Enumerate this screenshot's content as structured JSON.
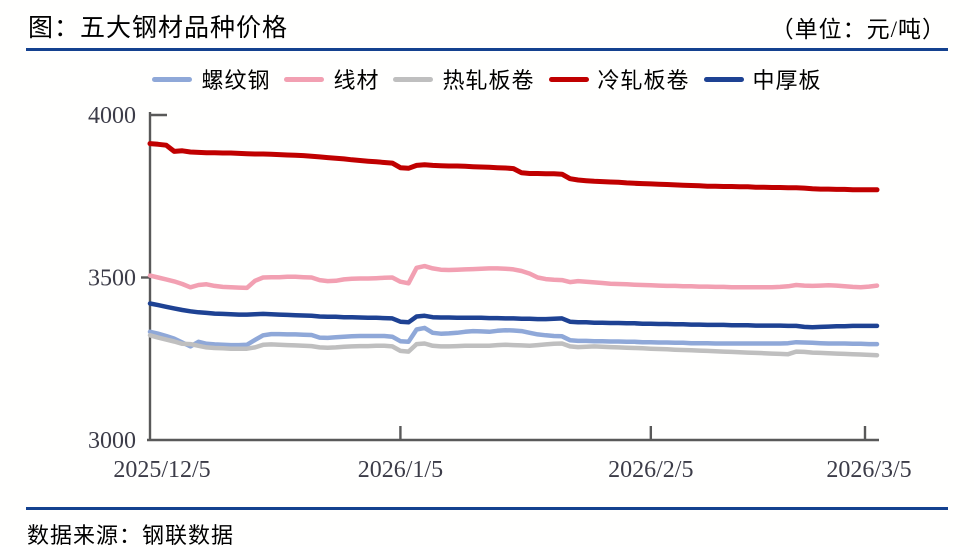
{
  "header": {
    "title": "图：五大钢材品种价格",
    "unit_note": "（单位：元/吨）"
  },
  "footer": {
    "source": "数据来源：钢联数据"
  },
  "colors": {
    "accent_rule": "#14418F",
    "axis_line": "#595959",
    "tick_label": "#3C3C48"
  },
  "chart_data": {
    "type": "line",
    "title": "五大钢材品种价格",
    "unit": "元/吨",
    "grid": false,
    "legend_position": "top",
    "ylim": [
      3000,
      4000
    ],
    "y_ticks": [
      4000,
      3500,
      3000
    ],
    "x_tick_labels": [
      "2025/12/5",
      "2026/1/5",
      "2026/2/5",
      "2026/3/5"
    ],
    "x_tick_days": [
      0,
      31,
      62,
      90
    ],
    "x_range_days": 90,
    "series": [
      {
        "name": "螺纹钢",
        "key": "rebar",
        "color": "#8FA8D8",
        "values": [
          3333,
          3327,
          3320,
          3312,
          3300,
          3288,
          3302,
          3296,
          3294,
          3293,
          3292,
          3292,
          3293,
          3308,
          3322,
          3326,
          3326,
          3325,
          3325,
          3324,
          3323,
          3315,
          3314,
          3316,
          3318,
          3319,
          3320,
          3320,
          3320,
          3320,
          3318,
          3304,
          3302,
          3340,
          3345,
          3330,
          3327,
          3328,
          3330,
          3333,
          3335,
          3334,
          3333,
          3336,
          3338,
          3337,
          3335,
          3330,
          3325,
          3322,
          3320,
          3319,
          3307,
          3305,
          3305,
          3304,
          3304,
          3303,
          3303,
          3302,
          3302,
          3301,
          3301,
          3300,
          3300,
          3299,
          3299,
          3298,
          3298,
          3298,
          3297,
          3297,
          3297,
          3297,
          3297,
          3297,
          3297,
          3297,
          3297,
          3298,
          3301,
          3300,
          3299,
          3298,
          3297,
          3297,
          3297,
          3296,
          3296,
          3295,
          3295
        ]
      },
      {
        "name": "线材",
        "key": "wire-rod",
        "color": "#F2A0B2",
        "values": [
          3506,
          3500,
          3494,
          3488,
          3480,
          3470,
          3477,
          3479,
          3474,
          3471,
          3470,
          3469,
          3468,
          3490,
          3500,
          3501,
          3501,
          3502,
          3502,
          3501,
          3500,
          3492,
          3489,
          3490,
          3494,
          3496,
          3497,
          3497,
          3498,
          3499,
          3500,
          3487,
          3482,
          3530,
          3535,
          3528,
          3524,
          3523,
          3524,
          3525,
          3526,
          3527,
          3528,
          3528,
          3527,
          3525,
          3520,
          3512,
          3500,
          3495,
          3493,
          3492,
          3486,
          3489,
          3487,
          3485,
          3483,
          3481,
          3480,
          3479,
          3478,
          3477,
          3476,
          3475,
          3474,
          3474,
          3473,
          3473,
          3472,
          3472,
          3471,
          3471,
          3470,
          3470,
          3470,
          3470,
          3470,
          3470,
          3471,
          3473,
          3477,
          3475,
          3474,
          3475,
          3476,
          3475,
          3473,
          3471,
          3470,
          3472,
          3475
        ]
      },
      {
        "name": "热轧板卷",
        "key": "hot-rolled-coil",
        "color": "#BFBFBF",
        "values": [
          3322,
          3315,
          3309,
          3303,
          3296,
          3295,
          3290,
          3285,
          3283,
          3282,
          3281,
          3281,
          3281,
          3285,
          3293,
          3294,
          3293,
          3292,
          3291,
          3290,
          3289,
          3285,
          3284,
          3285,
          3287,
          3288,
          3289,
          3289,
          3290,
          3290,
          3288,
          3274,
          3272,
          3295,
          3297,
          3290,
          3288,
          3288,
          3289,
          3290,
          3290,
          3290,
          3290,
          3292,
          3293,
          3292,
          3291,
          3290,
          3292,
          3294,
          3296,
          3297,
          3288,
          3286,
          3287,
          3288,
          3287,
          3286,
          3285,
          3284,
          3283,
          3282,
          3281,
          3280,
          3279,
          3278,
          3277,
          3276,
          3275,
          3274,
          3273,
          3272,
          3271,
          3270,
          3269,
          3268,
          3267,
          3266,
          3265,
          3264,
          3272,
          3271,
          3269,
          3268,
          3267,
          3266,
          3265,
          3264,
          3263,
          3262,
          3261
        ]
      },
      {
        "name": "冷轧板卷",
        "key": "cold-rolled-coil",
        "color": "#C00000",
        "values": [
          3912,
          3910,
          3907,
          3888,
          3890,
          3886,
          3885,
          3884,
          3884,
          3883,
          3883,
          3882,
          3881,
          3880,
          3880,
          3879,
          3878,
          3877,
          3876,
          3875,
          3873,
          3871,
          3869,
          3867,
          3865,
          3862,
          3860,
          3858,
          3856,
          3854,
          3852,
          3838,
          3836,
          3845,
          3847,
          3845,
          3844,
          3843,
          3843,
          3842,
          3841,
          3840,
          3839,
          3838,
          3837,
          3835,
          3822,
          3820,
          3820,
          3819,
          3819,
          3818,
          3804,
          3800,
          3798,
          3796,
          3795,
          3794,
          3793,
          3791,
          3790,
          3789,
          3788,
          3787,
          3786,
          3785,
          3784,
          3783,
          3782,
          3781,
          3781,
          3780,
          3780,
          3779,
          3779,
          3778,
          3778,
          3777,
          3777,
          3776,
          3776,
          3775,
          3773,
          3772,
          3772,
          3771,
          3771,
          3770,
          3770,
          3770,
          3770
        ]
      },
      {
        "name": "中厚板",
        "key": "heavy-plate",
        "color": "#1E4293",
        "values": [
          3420,
          3415,
          3410,
          3405,
          3400,
          3396,
          3393,
          3391,
          3389,
          3388,
          3387,
          3386,
          3386,
          3387,
          3388,
          3387,
          3386,
          3385,
          3384,
          3383,
          3382,
          3380,
          3379,
          3379,
          3378,
          3378,
          3377,
          3376,
          3376,
          3375,
          3374,
          3364,
          3362,
          3380,
          3382,
          3378,
          3377,
          3377,
          3376,
          3376,
          3376,
          3376,
          3375,
          3375,
          3374,
          3374,
          3373,
          3373,
          3372,
          3372,
          3373,
          3374,
          3364,
          3362,
          3362,
          3361,
          3361,
          3360,
          3360,
          3359,
          3359,
          3358,
          3358,
          3357,
          3357,
          3356,
          3356,
          3355,
          3355,
          3354,
          3354,
          3354,
          3353,
          3353,
          3353,
          3352,
          3352,
          3352,
          3352,
          3351,
          3351,
          3348,
          3347,
          3348,
          3349,
          3350,
          3350,
          3351,
          3351,
          3351,
          3351
        ]
      }
    ]
  }
}
